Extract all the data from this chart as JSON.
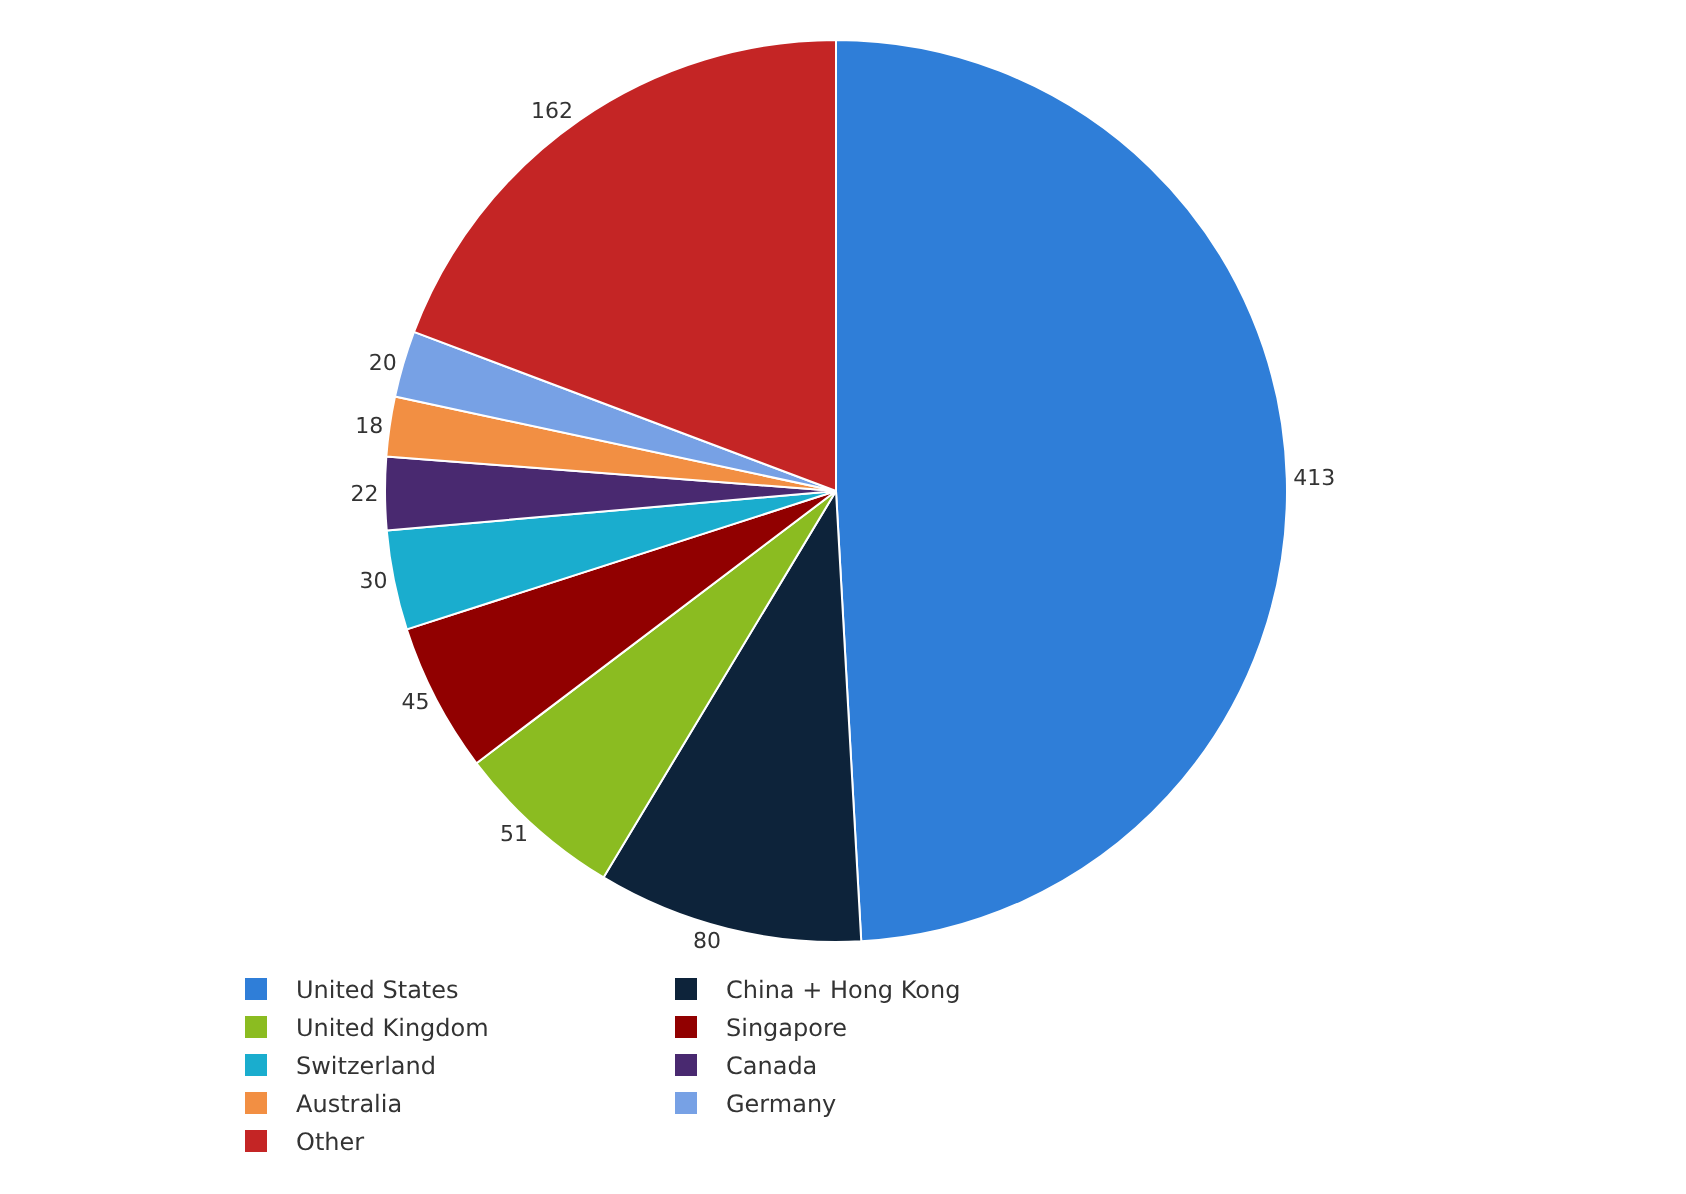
{
  "chart_data": {
    "type": "pie",
    "categories": [
      "United States",
      "China + Hong Kong",
      "United Kingdom",
      "Singapore",
      "Switzerland",
      "Canada",
      "Australia",
      "Germany",
      "Other"
    ],
    "values": [
      413,
      80,
      51,
      45,
      30,
      22,
      18,
      20,
      162
    ],
    "colors": [
      "#2f7ed8",
      "#0d233a",
      "#8bbc21",
      "#910000",
      "#1aadce",
      "#492970",
      "#f28f43",
      "#77a1e5",
      "#c42525"
    ],
    "data_labels": true,
    "legend": "bottom"
  }
}
